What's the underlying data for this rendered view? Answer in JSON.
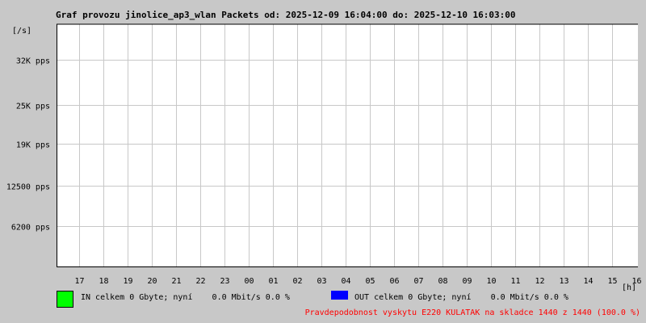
{
  "chart_data": {
    "type": "line",
    "title": "Graf provozu jinolice_ap3_wlan Packets od: 2025-12-09 16:04:00 do: 2025-12-10 16:03:00",
    "ylabel": "[/s]",
    "xlabel": "[h]",
    "y_ticks": [
      {
        "value": 6200,
        "label": "6200 pps"
      },
      {
        "value": 12500,
        "label": "12500 pps"
      },
      {
        "value": 19000,
        "label": "19K pps"
      },
      {
        "value": 25000,
        "label": "25K pps"
      },
      {
        "value": 32000,
        "label": "32K pps"
      }
    ],
    "ylim": [
      0,
      37500
    ],
    "x_ticks": [
      "17",
      "18",
      "19",
      "20",
      "21",
      "22",
      "23",
      "00",
      "01",
      "02",
      "03",
      "04",
      "05",
      "06",
      "07",
      "08",
      "09",
      "10",
      "11",
      "12",
      "13",
      "14",
      "15",
      "16"
    ],
    "grid": true,
    "series": [
      {
        "name": "IN",
        "color": "#00ff00",
        "values": []
      },
      {
        "name": "OUT",
        "color": "#0000ff",
        "values": []
      }
    ]
  },
  "legend": {
    "in_text": "IN celkem 0 Gbyte; nyní    0.0 Mbit/s 0.0 %",
    "out_text": "OUT celkem 0 Gbyte; nyní    0.0 Mbit/s 0.0 %",
    "in_color": "#00ff00",
    "out_color": "#0000ff"
  },
  "footer": {
    "text": "Pravdepodobnost vyskytu E220 KULATAK na skladce 1440 z 1440 (100.0 %)",
    "color": "#ff0000"
  }
}
